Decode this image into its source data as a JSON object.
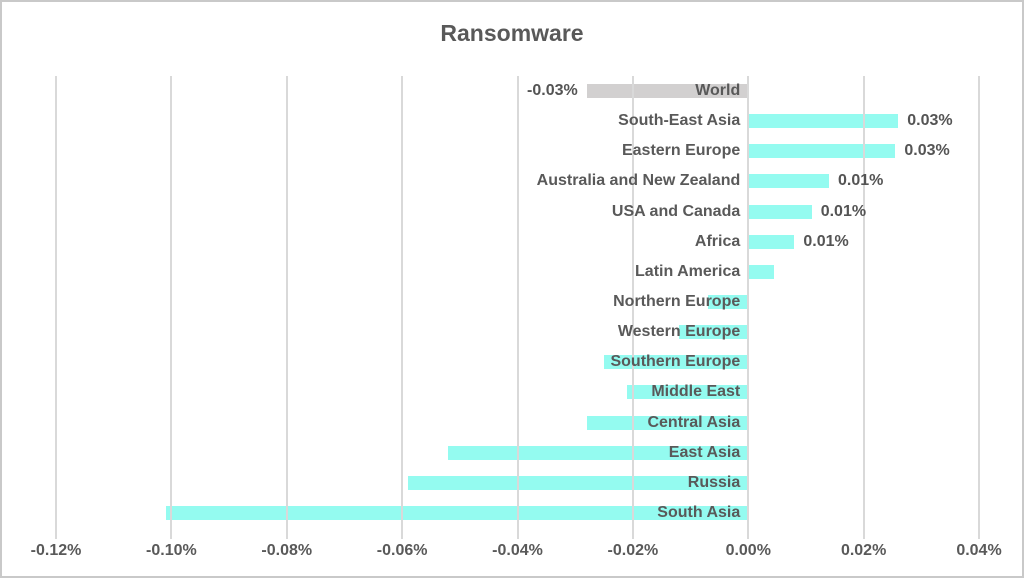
{
  "title": "Ransomware",
  "colors": {
    "bar_accent": "#94fbf0",
    "bar_world": "#d2d0d0",
    "text": "#595959",
    "gridline": "#d9d9d9",
    "border": "#c9c9c9",
    "background": "#ffffff"
  },
  "chart_data": {
    "type": "bar",
    "orientation": "horizontal",
    "title": "Ransomware",
    "xlabel": "",
    "ylabel": "",
    "grid": true,
    "xlim": [
      -0.12,
      0.04
    ],
    "x_ticks": [
      "-0.12%",
      "-0.10%",
      "-0.08%",
      "-0.06%",
      "-0.04%",
      "-0.02%",
      "0.00%",
      "0.02%",
      "0.04%"
    ],
    "categories": [
      "World",
      "South-East Asia",
      "Eastern Europe",
      "Australia and New Zealand",
      "USA and Canada",
      "Africa",
      "Latin America",
      "Northern Europe",
      "Western Europe",
      "Southern Europe",
      "Middle East",
      "Central Asia",
      "East Asia",
      "Russia",
      "South Asia"
    ],
    "values": [
      -0.028,
      0.026,
      0.0255,
      0.014,
      0.011,
      0.008,
      0.0045,
      -0.007,
      -0.012,
      -0.025,
      -0.021,
      -0.028,
      -0.052,
      -0.059,
      -0.101
    ],
    "data_labels": [
      "-0.03%",
      "0.03%",
      "0.03%",
      "0.01%",
      "0.01%",
      "0.01%",
      "",
      "",
      "",
      "",
      "",
      "",
      "",
      "",
      ""
    ],
    "bar_colors": [
      "#d2d0d0",
      "#94fbf0",
      "#94fbf0",
      "#94fbf0",
      "#94fbf0",
      "#94fbf0",
      "#94fbf0",
      "#94fbf0",
      "#94fbf0",
      "#94fbf0",
      "#94fbf0",
      "#94fbf0",
      "#94fbf0",
      "#94fbf0",
      "#94fbf0"
    ]
  }
}
